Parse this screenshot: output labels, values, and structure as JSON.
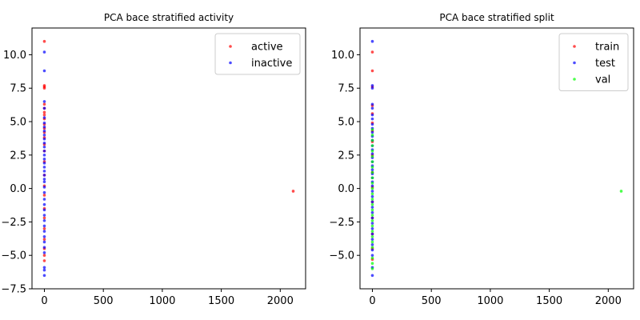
{
  "chart_data": [
    {
      "type": "scatter",
      "title": "PCA bace stratified activity",
      "xlabel": "",
      "ylabel": "",
      "xlim": [
        -105,
        2215
      ],
      "ylim": [
        -7.5,
        12.0
      ],
      "xticks": [
        0,
        500,
        1000,
        1500,
        2000
      ],
      "yticks": [
        -7.5,
        -5.0,
        -2.5,
        0.0,
        2.5,
        5.0,
        7.5,
        10.0
      ],
      "xtick_labels": [
        "0",
        "500",
        "1000",
        "1500",
        "2000"
      ],
      "ytick_labels": [
        "−7.5",
        "−5.0",
        "−2.5",
        "0.0",
        "2.5",
        "5.0",
        "7.5",
        "10.0"
      ],
      "grid": false,
      "legend_position": "top-right",
      "series": [
        {
          "name": "active",
          "color": "#ff0000",
          "points": [
            [
              2110,
              -0.2
            ],
            [
              0,
              11.0
            ],
            [
              0,
              7.7
            ],
            [
              0,
              7.6
            ],
            [
              0,
              7.5
            ],
            [
              0,
              6.3
            ],
            [
              0,
              6.0
            ],
            [
              0,
              5.7
            ],
            [
              0,
              5.5
            ],
            [
              0,
              5.2
            ],
            [
              0,
              4.8
            ],
            [
              0,
              4.5
            ],
            [
              0,
              4.2
            ],
            [
              0,
              3.8
            ],
            [
              0,
              3.3
            ],
            [
              0,
              2.8
            ],
            [
              0,
              2.0
            ],
            [
              0,
              1.0
            ],
            [
              0,
              0.2
            ],
            [
              0,
              -0.5
            ],
            [
              0,
              -1.5
            ],
            [
              0,
              -2.2
            ],
            [
              0,
              -3.0
            ],
            [
              0,
              -3.8
            ],
            [
              0,
              -4.5
            ],
            [
              0,
              -5.0
            ],
            [
              0,
              -5.4
            ]
          ]
        },
        {
          "name": "inactive",
          "color": "#0000ff",
          "points": [
            [
              0,
              10.2
            ],
            [
              0,
              8.8
            ],
            [
              0,
              6.5
            ],
            [
              0,
              6.0
            ],
            [
              0,
              5.3
            ],
            [
              0,
              4.9
            ],
            [
              0,
              4.6
            ],
            [
              0,
              4.3
            ],
            [
              0,
              4.0
            ],
            [
              0,
              3.7
            ],
            [
              0,
              3.4
            ],
            [
              0,
              3.1
            ],
            [
              0,
              2.8
            ],
            [
              0,
              2.5
            ],
            [
              0,
              2.2
            ],
            [
              0,
              1.9
            ],
            [
              0,
              1.6
            ],
            [
              0,
              1.3
            ],
            [
              0,
              1.0
            ],
            [
              0,
              0.7
            ],
            [
              0,
              0.5
            ],
            [
              0,
              0.1
            ],
            [
              0,
              -0.3
            ],
            [
              0,
              -0.8
            ],
            [
              0,
              -1.2
            ],
            [
              0,
              -1.6
            ],
            [
              0,
              -2.0
            ],
            [
              0,
              -2.4
            ],
            [
              0,
              -2.8
            ],
            [
              0,
              -3.2
            ],
            [
              0,
              -3.6
            ],
            [
              0,
              -4.0
            ],
            [
              0,
              -4.4
            ],
            [
              0,
              -4.8
            ],
            [
              0,
              -5.9
            ],
            [
              0,
              -6.1
            ],
            [
              0,
              -6.5
            ]
          ]
        }
      ]
    },
    {
      "type": "scatter",
      "title": "PCA bace stratified split",
      "xlabel": "",
      "ylabel": "",
      "xlim": [
        -105,
        2215
      ],
      "ylim": [
        -7.5,
        12.0
      ],
      "xticks": [
        0,
        500,
        1000,
        1500,
        2000
      ],
      "yticks": [
        -5.0,
        -2.5,
        0.0,
        2.5,
        5.0,
        7.5,
        10.0
      ],
      "xtick_labels": [
        "0",
        "500",
        "1000",
        "1500",
        "2000"
      ],
      "ytick_labels": [
        "−5.0",
        "−2.5",
        "0.0",
        "2.5",
        "5.0",
        "7.5",
        "10.0"
      ],
      "grid": false,
      "legend_position": "top-right",
      "series": [
        {
          "name": "train",
          "color": "#ff0000",
          "points": [
            [
              0,
              10.2
            ],
            [
              0,
              8.8
            ],
            [
              0,
              7.6
            ],
            [
              0,
              6.2
            ],
            [
              0,
              5.6
            ],
            [
              0,
              4.9
            ],
            [
              0,
              4.3
            ],
            [
              0,
              3.5
            ],
            [
              0,
              2.5
            ],
            [
              0,
              1.2
            ],
            [
              0,
              0.1
            ],
            [
              0,
              -1.0
            ],
            [
              0,
              -2.2
            ],
            [
              0,
              -3.4
            ],
            [
              0,
              -4.5
            ],
            [
              0,
              -5.3
            ]
          ]
        },
        {
          "name": "test",
          "color": "#0000ff",
          "points": [
            [
              0,
              11.0
            ],
            [
              0,
              7.7
            ],
            [
              0,
              7.5
            ],
            [
              0,
              6.3
            ],
            [
              0,
              6.0
            ],
            [
              0,
              5.5
            ],
            [
              0,
              5.2
            ],
            [
              0,
              4.8
            ],
            [
              0,
              4.5
            ],
            [
              0,
              4.2
            ],
            [
              0,
              3.9
            ],
            [
              0,
              3.6
            ],
            [
              0,
              3.2
            ],
            [
              0,
              2.9
            ],
            [
              0,
              2.6
            ],
            [
              0,
              2.3
            ],
            [
              0,
              2.0
            ],
            [
              0,
              1.7
            ],
            [
              0,
              1.4
            ],
            [
              0,
              1.1
            ],
            [
              0,
              0.8
            ],
            [
              0,
              0.5
            ],
            [
              0,
              0.2
            ],
            [
              0,
              -0.2
            ],
            [
              0,
              -0.6
            ],
            [
              0,
              -1.0
            ],
            [
              0,
              -1.4
            ],
            [
              0,
              -1.8
            ],
            [
              0,
              -2.2
            ],
            [
              0,
              -2.6
            ],
            [
              0,
              -3.0
            ],
            [
              0,
              -3.4
            ],
            [
              0,
              -3.8
            ],
            [
              0,
              -4.2
            ],
            [
              0,
              -4.6
            ],
            [
              0,
              -5.0
            ],
            [
              0,
              -5.9
            ],
            [
              0,
              -6.5
            ]
          ]
        },
        {
          "name": "val",
          "color": "#00ff00",
          "points": [
            [
              2110,
              -0.2
            ],
            [
              0,
              4.4
            ],
            [
              0,
              4.0
            ],
            [
              0,
              3.6
            ],
            [
              0,
              3.2
            ],
            [
              0,
              2.8
            ],
            [
              0,
              2.4
            ],
            [
              0,
              2.0
            ],
            [
              0,
              1.6
            ],
            [
              0,
              1.2
            ],
            [
              0,
              0.8
            ],
            [
              0,
              0.4
            ],
            [
              0,
              0.0
            ],
            [
              0,
              -0.4
            ],
            [
              0,
              -0.8
            ],
            [
              0,
              -1.2
            ],
            [
              0,
              -1.6
            ],
            [
              0,
              -2.0
            ],
            [
              0,
              -2.4
            ],
            [
              0,
              -2.8
            ],
            [
              0,
              -3.2
            ],
            [
              0,
              -3.6
            ],
            [
              0,
              -4.0
            ],
            [
              0,
              -4.4
            ],
            [
              0,
              -5.2
            ],
            [
              0,
              -5.6
            ],
            [
              0,
              -6.0
            ]
          ]
        }
      ]
    }
  ]
}
